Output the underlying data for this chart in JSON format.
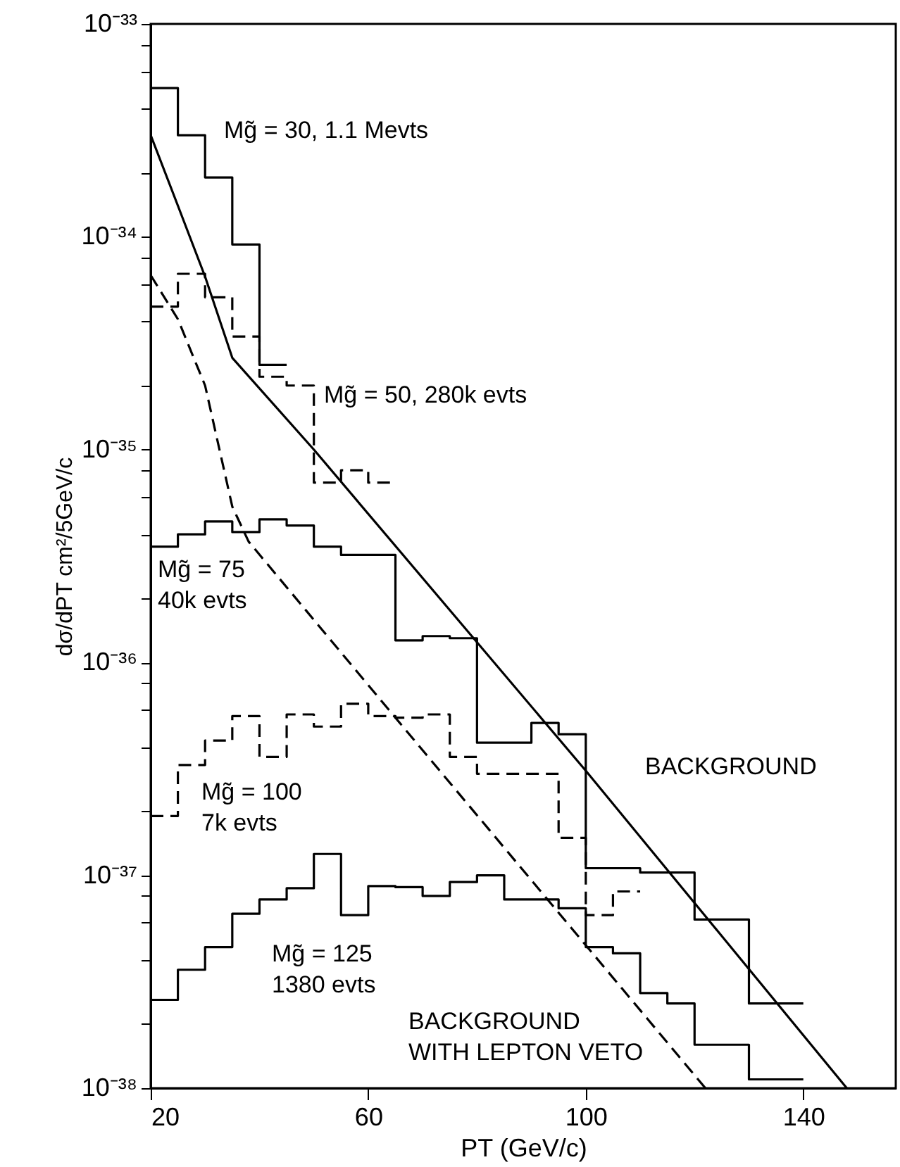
{
  "chart_data": {
    "type": "step",
    "xlabel": "PT (GeV/c)",
    "ylabel": "dσ/dPT cm²/5GeV/c",
    "xlim": [
      20,
      157
    ],
    "ylim": [
      1e-38,
      1e-33
    ],
    "log": "y",
    "grid": false,
    "xticks": [
      20,
      60,
      100,
      140
    ],
    "yticks": [
      {
        "value": 1e-38,
        "label": "10⁻³⁸"
      },
      {
        "value": 2e-38,
        "label": null
      },
      {
        "value": 4e-38,
        "label": null
      },
      {
        "value": 6e-38,
        "label": null
      },
      {
        "value": 8e-38,
        "label": null
      },
      {
        "value": 1e-37,
        "label": "10⁻³⁷"
      },
      {
        "value": 2e-37,
        "label": null
      },
      {
        "value": 4e-37,
        "label": null
      },
      {
        "value": 6e-37,
        "label": null
      },
      {
        "value": 8e-37,
        "label": null
      },
      {
        "value": 1e-36,
        "label": "10⁻³⁶"
      },
      {
        "value": 2e-36,
        "label": null
      },
      {
        "value": 4e-36,
        "label": null
      },
      {
        "value": 6e-36,
        "label": null
      },
      {
        "value": 8e-36,
        "label": null
      },
      {
        "value": 1e-35,
        "label": "10⁻³⁵"
      },
      {
        "value": 2e-35,
        "label": null
      },
      {
        "value": 4e-35,
        "label": null
      },
      {
        "value": 6e-35,
        "label": null
      },
      {
        "value": 8e-35,
        "label": null
      },
      {
        "value": 1e-34,
        "label": "10⁻³⁴"
      },
      {
        "value": 2e-34,
        "label": null
      },
      {
        "value": 4e-34,
        "label": null
      },
      {
        "value": 6e-34,
        "label": null
      },
      {
        "value": 8e-34,
        "label": null
      },
      {
        "value": 1e-33,
        "label": "10⁻³³"
      }
    ],
    "series": [
      {
        "color": "#000000",
        "line_style": "solid",
        "x": [
          20,
          25,
          30,
          35,
          40,
          45
        ],
        "values": [
          5e-34,
          3e-34,
          1.9e-34,
          9.2e-35,
          2.5e-35,
          2.5e-35
        ]
      },
      {
        "color": "#000000",
        "line_style": "dashed",
        "x": [
          20,
          25,
          30,
          35,
          40,
          45,
          50,
          55,
          60,
          65
        ],
        "values": [
          4.7e-35,
          6.7e-35,
          5.2e-35,
          3.4e-35,
          2.2e-35,
          2e-35,
          7e-36,
          8e-36,
          7e-36,
          7e-36
        ]
      },
      {
        "color": "#000000",
        "line_style": "solid",
        "x": [
          20,
          25,
          30,
          35,
          40,
          45,
          50,
          55,
          60,
          65,
          70,
          75,
          80,
          85,
          90,
          95,
          100,
          105,
          110,
          115,
          120,
          125,
          130,
          135,
          140
        ],
        "values": [
          3.5e-36,
          4e-36,
          4.6e-36,
          4.1e-36,
          4.7e-36,
          4.4e-36,
          3.5e-36,
          3.2e-36,
          3.2e-36,
          1.27e-36,
          1.33e-36,
          1.3e-36,
          4.2e-37,
          4.2e-37,
          5.2e-37,
          4.6e-37,
          1.08e-37,
          1.08e-37,
          1.03e-37,
          1.03e-37,
          6.2e-38,
          6.2e-38,
          2.5e-38,
          2.5e-38,
          2.5e-38
        ]
      },
      {
        "color": "#000000",
        "line_style": "dashed",
        "x": [
          20,
          25,
          30,
          35,
          40,
          45,
          50,
          55,
          60,
          65,
          70,
          75,
          80,
          85,
          90,
          95,
          100,
          105,
          110
        ],
        "values": [
          1.9e-37,
          3.3e-37,
          4.3e-37,
          5.6e-37,
          3.6e-37,
          5.7e-37,
          5e-37,
          6.4e-37,
          5.6e-37,
          5.5e-37,
          5.7e-37,
          3.6e-37,
          3e-37,
          3e-37,
          3e-37,
          1.5e-37,
          6.5e-38,
          8.4e-38,
          8.4e-38
        ]
      },
      {
        "color": "#000000",
        "line_style": "solid",
        "x": [
          20,
          25,
          30,
          35,
          40,
          45,
          50,
          55,
          60,
          65,
          70,
          75,
          80,
          85,
          90,
          95,
          100,
          105,
          110,
          115,
          120,
          125,
          130,
          135,
          140
        ],
        "values": [
          2.6e-38,
          3.6e-38,
          4.6e-38,
          6.6e-38,
          7.7e-38,
          8.7e-38,
          1.26e-37,
          6.5e-38,
          8.9e-38,
          8.8e-38,
          8e-38,
          9.3e-38,
          1e-37,
          7.7e-38,
          7.7e-38,
          7e-38,
          4.6e-38,
          4.3e-38,
          2.8e-38,
          2.5e-38,
          1.6e-38,
          1.6e-38,
          1.1e-38,
          1.1e-38,
          1.1e-38
        ]
      },
      {
        "type": "line",
        "color": "#000000",
        "line_style": "solid",
        "x": [
          20,
          25,
          30,
          35,
          50,
          100,
          148
        ],
        "values": [
          3e-34,
          1.4e-34,
          6.5e-35,
          2.7e-35,
          1e-35,
          3.1e-37,
          1e-38
        ]
      },
      {
        "type": "line",
        "color": "#000000",
        "line_style": "dashed",
        "x": [
          20,
          25,
          30,
          35,
          38,
          65,
          122
        ],
        "values": [
          6.6e-35,
          4.1e-35,
          2e-35,
          5.4e-36,
          3.7e-36,
          5.5e-37,
          1e-38
        ]
      }
    ],
    "annotations": [
      "Mg̃ = 30, 1.1 Mevts",
      "Mg̃ = 50, 280k evts",
      "Mg̃ = 75\n40k evts",
      "Mg̃ = 100\n7k evts",
      "Mg̃ = 125\n1380 evts",
      "BACKGROUND",
      "BACKGROUND\nWITH LEPTON VETO"
    ]
  }
}
